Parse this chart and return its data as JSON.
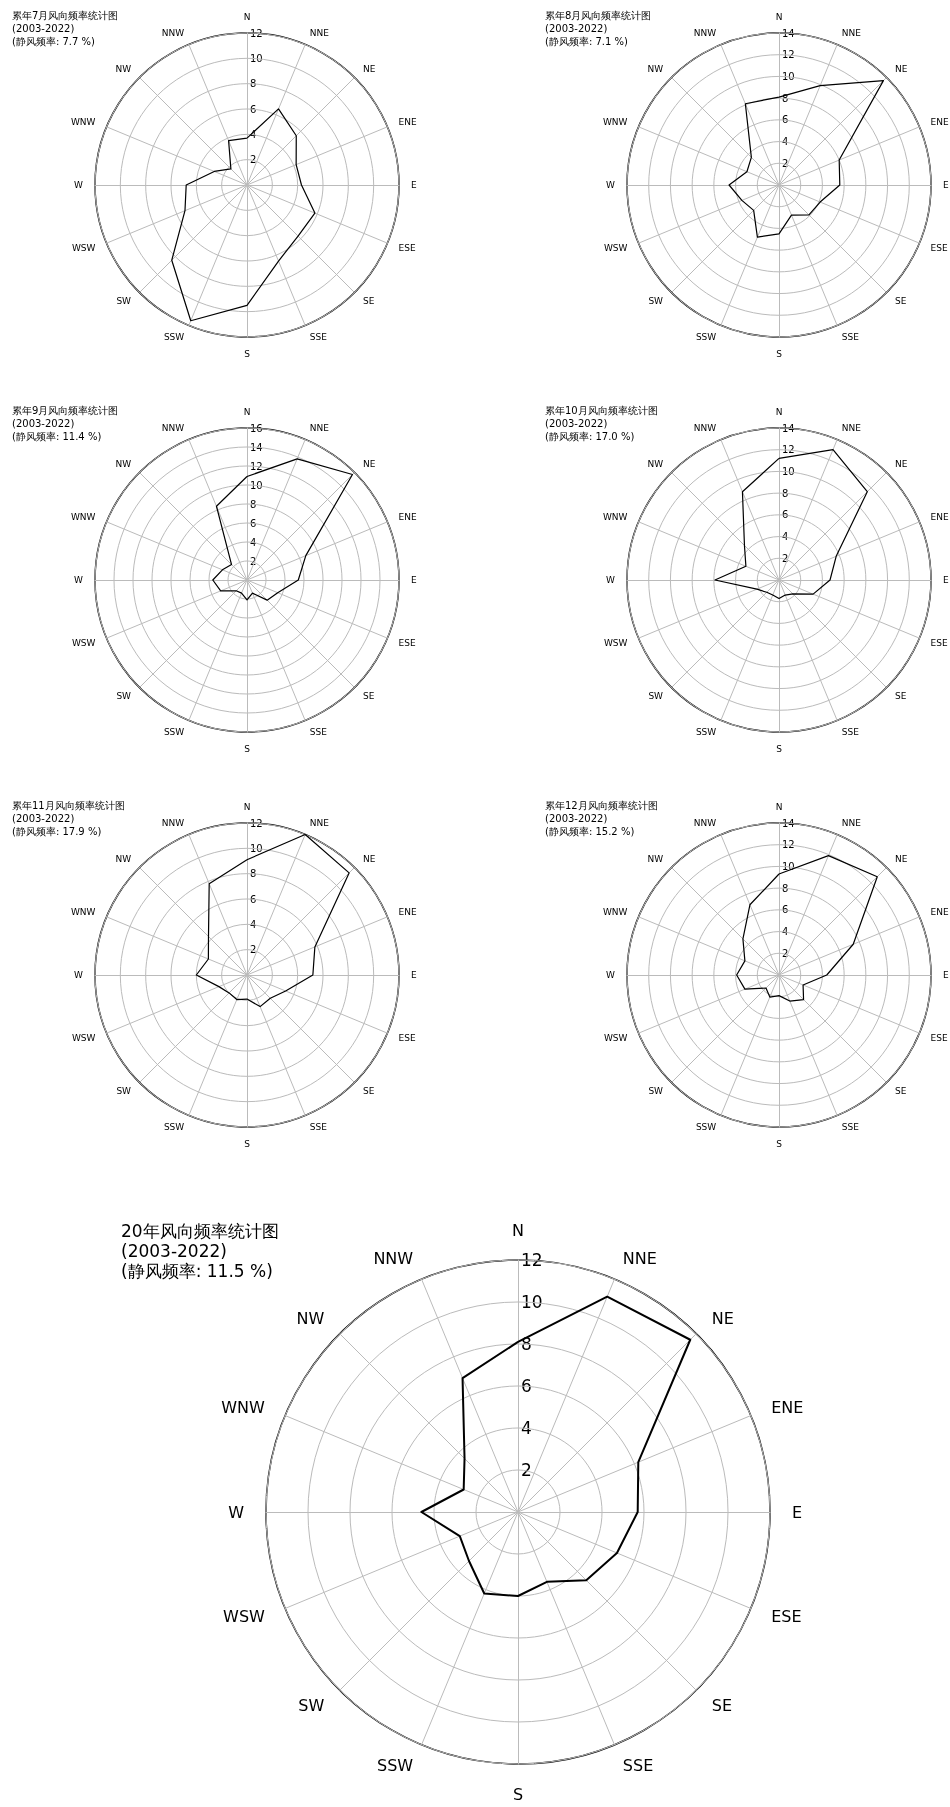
{
  "chart_data": [
    {
      "type": "radar",
      "title": "累年7月风向频率统计图",
      "annotations": [
        "(2003-2022)",
        "(静风频率: 7.7 %)"
      ],
      "categories": [
        "N",
        "NNE",
        "NE",
        "ENE",
        "E",
        "ESE",
        "SE",
        "SSE",
        "S",
        "SSW",
        "SW",
        "WSW",
        "W",
        "WNW",
        "NW",
        "NNW"
      ],
      "series": [
        {
          "color": "#000000",
          "values": [
            3.7,
            6.5,
            5.5,
            4.2,
            4.3,
            5.8,
            5.7,
            6.5,
            9.5,
            11.6,
            8.4,
            5.3,
            4.8,
            2.8,
            1.8,
            3.8
          ]
        }
      ],
      "ylim": [
        0,
        12
      ],
      "yticks": [
        2,
        4,
        6,
        8,
        10,
        12
      ],
      "grid": true
    },
    {
      "type": "radar",
      "title": "累年8月风向频率统计图",
      "annotations": [
        "(2003-2022)",
        "(静风频率: 7.1 %)"
      ],
      "categories": [
        "N",
        "NNE",
        "NE",
        "ENE",
        "E",
        "ESE",
        "SE",
        "SSE",
        "S",
        "SSW",
        "SW",
        "WSW",
        "W",
        "WNW",
        "NW",
        "NNW"
      ],
      "series": [
        {
          "color": "#000000",
          "values": [
            8.1,
            9.9,
            13.6,
            6.0,
            5.6,
            4.1,
            3.9,
            3.0,
            4.5,
            5.2,
            3.3,
            3.7,
            4.6,
            3.2,
            3.6,
            8.1
          ]
        }
      ],
      "ylim": [
        0,
        14
      ],
      "yticks": [
        2,
        4,
        6,
        8,
        10,
        12,
        14
      ],
      "grid": true
    },
    {
      "type": "radar",
      "title": "累年9月风向频率统计图",
      "annotations": [
        "(2003-2022)",
        "(静风频率: 11.4 %)"
      ],
      "categories": [
        "N",
        "NNE",
        "NE",
        "ENE",
        "E",
        "ESE",
        "SE",
        "SSE",
        "S",
        "SSW",
        "SW",
        "WSW",
        "W",
        "WNW",
        "NW",
        "NNW"
      ],
      "series": [
        {
          "color": "#000000",
          "values": [
            10.9,
            13.8,
            15.7,
            6.7,
            5.4,
            3.5,
            3.0,
            1.5,
            2.1,
            1.5,
            1.6,
            3.0,
            3.6,
            2.8,
            2.3,
            8.4
          ]
        }
      ],
      "ylim": [
        0,
        16
      ],
      "yticks": [
        2,
        4,
        6,
        8,
        10,
        12,
        14,
        16
      ],
      "grid": true
    },
    {
      "type": "radar",
      "title": "累年10月风向频率统计图",
      "annotations": [
        "(2003-2022)",
        "(静风频率: 17.0 %)"
      ],
      "categories": [
        "N",
        "NNE",
        "NE",
        "ENE",
        "E",
        "ESE",
        "SE",
        "SSE",
        "S",
        "SSW",
        "SW",
        "WSW",
        "W",
        "WNW",
        "NW",
        "NNW"
      ],
      "series": [
        {
          "color": "#000000",
          "values": [
            11.2,
            13.0,
            11.5,
            5.7,
            4.7,
            3.4,
            1.8,
            1.5,
            1.7,
            1.5,
            1.6,
            2.2,
            5.9,
            3.3,
            4.5,
            8.8
          ]
        }
      ],
      "ylim": [
        0,
        14
      ],
      "yticks": [
        2,
        4,
        6,
        8,
        10,
        12,
        14
      ],
      "grid": true
    },
    {
      "type": "radar",
      "title": "累年11月风向频率统计图",
      "annotations": [
        "(2003-2022)",
        "(静风频率: 17.9 %)"
      ],
      "categories": [
        "N",
        "NNE",
        "NE",
        "ENE",
        "E",
        "ESE",
        "SE",
        "SSE",
        "S",
        "SSW",
        "SW",
        "WSW",
        "W",
        "WNW",
        "NW",
        "NNW"
      ],
      "series": [
        {
          "color": "#000000",
          "values": [
            9.1,
            12.0,
            11.4,
            5.8,
            5.2,
            3.3,
            2.6,
            2.7,
            1.9,
            2.1,
            2.0,
            2.4,
            4.0,
            3.3,
            4.3,
            7.8
          ]
        }
      ],
      "ylim": [
        0,
        12
      ],
      "yticks": [
        2,
        4,
        6,
        8,
        10,
        12
      ],
      "grid": true
    },
    {
      "type": "radar",
      "title": "累年12月风向频率统计图",
      "annotations": [
        "(2003-2022)",
        "(静风频率: 15.2 %)"
      ],
      "categories": [
        "N",
        "NNE",
        "NE",
        "ENE",
        "E",
        "ESE",
        "SE",
        "SSE",
        "S",
        "SSW",
        "SW",
        "WSW",
        "W",
        "WNW",
        "NW",
        "NNW"
      ],
      "series": [
        {
          "color": "#000000",
          "values": [
            9.3,
            11.9,
            12.8,
            7.4,
            4.4,
            2.4,
            3.2,
            2.6,
            1.9,
            2.2,
            1.7,
            3.4,
            3.9,
            3.4,
            4.7,
            7.0
          ]
        }
      ],
      "ylim": [
        0,
        14
      ],
      "yticks": [
        2,
        4,
        6,
        8,
        10,
        12,
        14
      ],
      "grid": true
    },
    {
      "type": "radar",
      "title": "20年风向频率统计图",
      "annotations": [
        "(2003-2022)",
        "(静风频率: 11.5 %)"
      ],
      "categories": [
        "N",
        "NNE",
        "NE",
        "ENE",
        "E",
        "ESE",
        "SE",
        "SSE",
        "S",
        "SSW",
        "SW",
        "WSW",
        "W",
        "WNW",
        "NW",
        "NNW"
      ],
      "series": [
        {
          "color": "#000000",
          "values": [
            8.1,
            11.1,
            11.6,
            6.2,
            5.7,
            5.1,
            4.6,
            3.6,
            4.0,
            4.2,
            3.3,
            3.0,
            4.6,
            2.8,
            3.6,
            6.9
          ]
        }
      ],
      "ylim": [
        0,
        12
      ],
      "yticks": [
        2,
        4,
        6,
        8,
        10,
        12
      ],
      "grid": true
    }
  ]
}
